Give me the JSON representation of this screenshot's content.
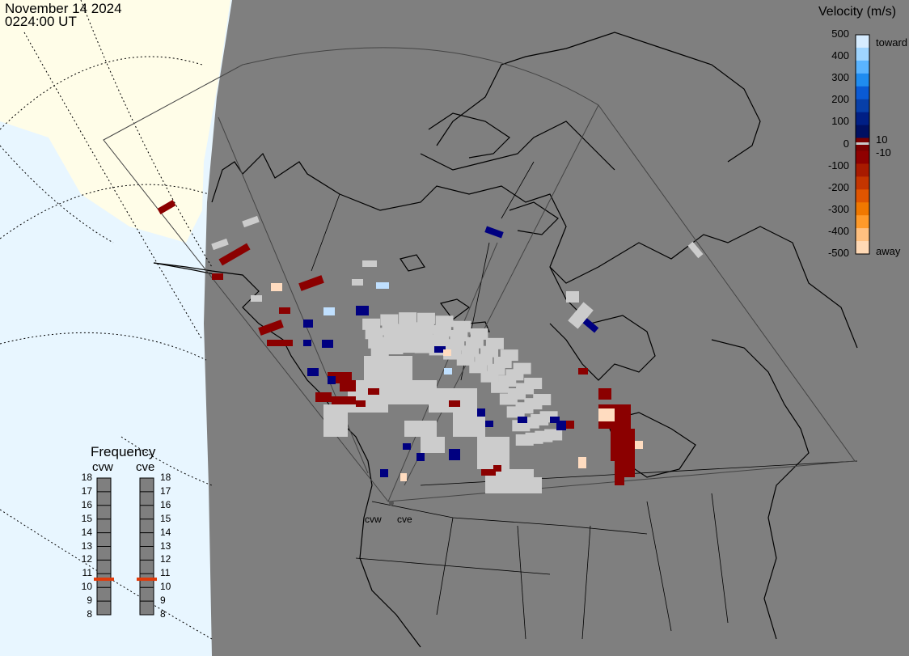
{
  "header": {
    "date": "November 14 2024",
    "time": "0224:00 UT"
  },
  "legend": {
    "title": "Velocity (m/s)",
    "ticks": [
      "500",
      "400",
      "300",
      "200",
      "100",
      "0",
      "-100",
      "-200",
      "-300",
      "-400",
      "-500"
    ],
    "toward_label": "toward",
    "away_label": "away",
    "inner_pos": "10",
    "inner_neg": "-10",
    "colors": [
      "#d6ecff",
      "#9fd5ff",
      "#5ab4ff",
      "#1f8cf0",
      "#0a5ad4",
      "#073fa8",
      "#001f85",
      "#001062",
      "#7a0000",
      "#8f0000",
      "#a81a00",
      "#c43500",
      "#e05500",
      "#f07800",
      "#ff9a2a",
      "#ffc080",
      "#ffd9b5"
    ]
  },
  "frequency": {
    "title": "Frequency",
    "radars": [
      "cvw",
      "cve"
    ],
    "ticks": [
      "18",
      "17",
      "16",
      "15",
      "14",
      "13",
      "12",
      "11",
      "10",
      "9",
      "8"
    ],
    "values_mhz": [
      10.6,
      10.6
    ]
  },
  "map": {
    "radar_labels": [
      "cvw",
      "cve"
    ],
    "colors": {
      "night": "#7f7f7f",
      "ocean": "#e8f6ff",
      "land": "#fffde8",
      "ground": "#cccccc",
      "dark_red": "#8b0000",
      "navy": "#000080",
      "light_blue": "#c0e0ff",
      "peach": "#ffdcc0"
    }
  }
}
